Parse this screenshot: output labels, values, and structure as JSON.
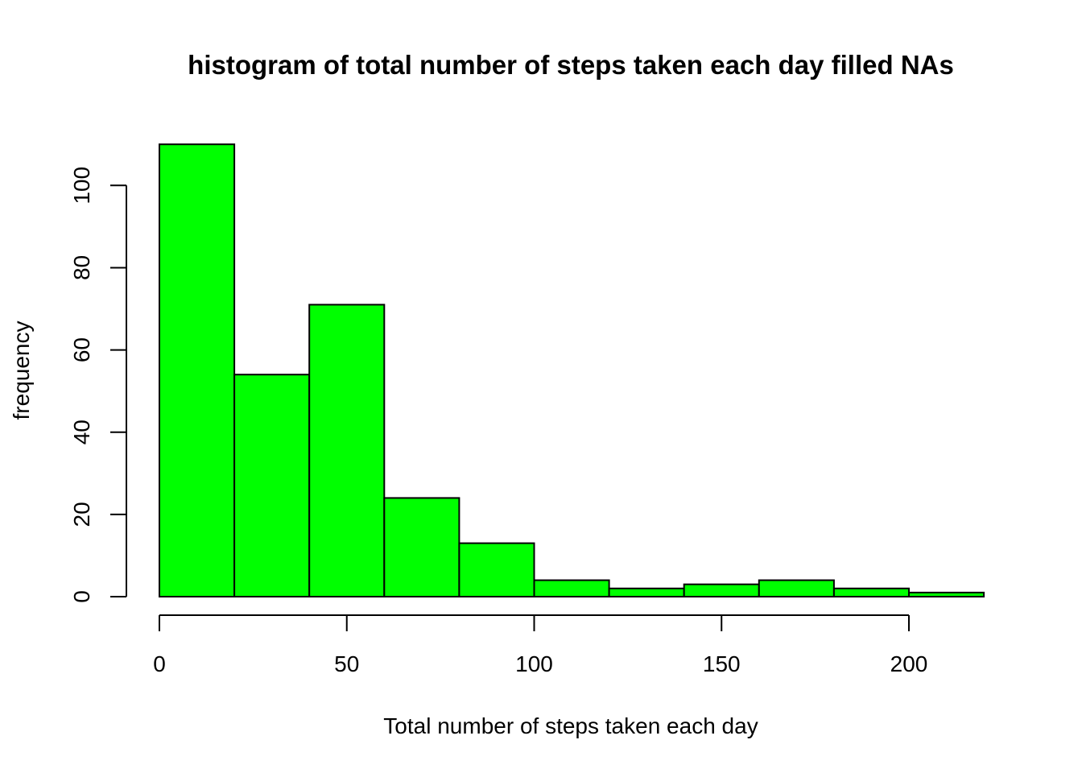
{
  "chart_data": {
    "type": "bar",
    "title": "histogram of total number of steps taken each day filled NAs",
    "xlabel": "Total number of steps taken each day",
    "ylabel": "frequency",
    "bins": [
      {
        "from": 0,
        "to": 20,
        "count": 110
      },
      {
        "from": 20,
        "to": 40,
        "count": 54
      },
      {
        "from": 40,
        "to": 60,
        "count": 71
      },
      {
        "from": 60,
        "to": 80,
        "count": 24
      },
      {
        "from": 80,
        "to": 100,
        "count": 13
      },
      {
        "from": 100,
        "to": 120,
        "count": 4
      },
      {
        "from": 120,
        "to": 140,
        "count": 2
      },
      {
        "from": 140,
        "to": 160,
        "count": 3
      },
      {
        "from": 160,
        "to": 180,
        "count": 4
      },
      {
        "from": 180,
        "to": 200,
        "count": 2
      },
      {
        "from": 200,
        "to": 220,
        "count": 1
      }
    ],
    "xticks": [
      0,
      50,
      100,
      150,
      200
    ],
    "yticks": [
      0,
      20,
      40,
      60,
      80,
      100
    ],
    "xlim": [
      0,
      220
    ],
    "ylim": [
      0,
      110
    ],
    "grid": false,
    "bar_color": "#00ff00",
    "edge_color": "#000000"
  }
}
